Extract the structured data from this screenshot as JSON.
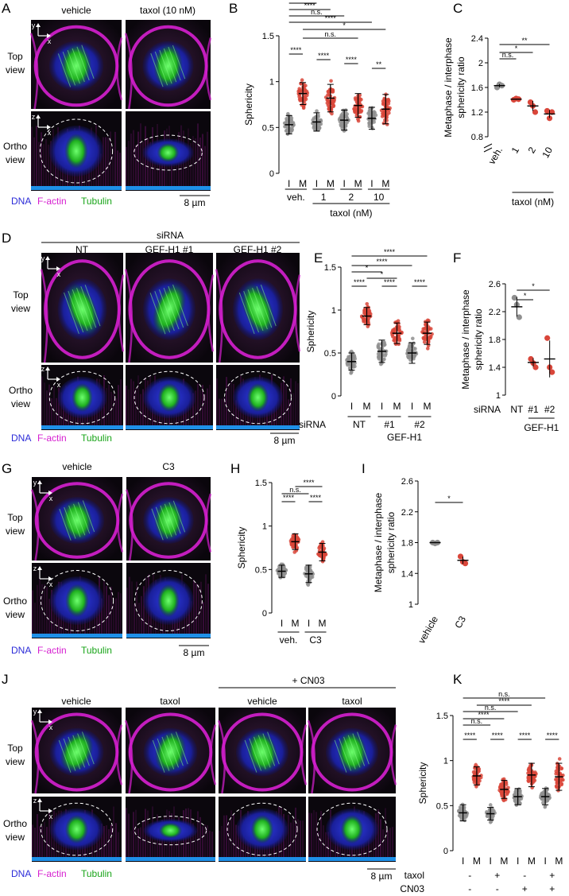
{
  "panel_letters": [
    "A",
    "B",
    "C",
    "D",
    "E",
    "F",
    "G",
    "H",
    "I",
    "J",
    "K"
  ],
  "colors": {
    "dna": "#2b2bd8",
    "actin": "#d61fd0",
    "tubulin": "#1aa51a",
    "interphase": "#8f8f8f",
    "metaphase": "#d9463a",
    "scale": "#1e90e8"
  },
  "legend": {
    "dna": "DNA",
    "actin": "F-actin",
    "tubulin": "Tubulin"
  },
  "scale_bar": "8 µm",
  "view_labels": {
    "top": "Top view",
    "ortho": "Ortho view"
  },
  "axis_labels": {
    "x": "x",
    "y": "y",
    "z": "z"
  },
  "panelA": {
    "cols": [
      "vehicle",
      "taxol (10 nM)"
    ]
  },
  "panelD": {
    "header": "siRNA",
    "cols": [
      "NT",
      "GEF-H1 #1",
      "GEF-H1 #2"
    ]
  },
  "panelG": {
    "cols": [
      "vehicle",
      "C3"
    ]
  },
  "panelJ": {
    "header": "+ CN03",
    "cols": [
      "vehicle",
      "taxol",
      "vehicle",
      "taxol"
    ]
  },
  "chart_data": [
    {
      "panel": "B",
      "type": "scatter",
      "ylabel": "Sphericity",
      "ylim": [
        0,
        1.5
      ],
      "yticks": [
        "0",
        "0.5",
        "1",
        "1.5"
      ],
      "categories": [
        "I",
        "M",
        "I",
        "M",
        "I",
        "M",
        "I",
        "M"
      ],
      "groups": [
        "veh.",
        "1",
        "2",
        "10"
      ],
      "group_title": "taxol (nM)",
      "means": [
        0.53,
        0.87,
        0.56,
        0.82,
        0.58,
        0.74,
        0.6,
        0.7
      ],
      "sds": [
        0.1,
        0.12,
        0.1,
        0.15,
        0.11,
        0.13,
        0.12,
        0.16
      ],
      "stats": [
        "****",
        "****",
        "****",
        "**",
        "*",
        "n.s.",
        "****",
        "n.s.",
        "****",
        "****"
      ]
    },
    {
      "panel": "C",
      "type": "scatter",
      "ylabel": "Metaphase / interphase sphericity ratio",
      "ylim": [
        0.8,
        2.4
      ],
      "yticks": [
        "0.8",
        "1.2",
        "1.6",
        "2",
        "2.4"
      ],
      "categories": [
        "veh.",
        "1",
        "2",
        "10"
      ],
      "group_title": "taxol (nM)",
      "points": [
        [
          1.6,
          1.65,
          1.63
        ],
        [
          1.4,
          1.42,
          1.41
        ],
        [
          1.36,
          1.3,
          1.2
        ],
        [
          1.22,
          1.1,
          1.2
        ]
      ],
      "means": [
        1.63,
        1.41,
        1.3,
        1.17
      ],
      "stats": [
        "n.s.",
        "*",
        "**"
      ]
    },
    {
      "panel": "E",
      "type": "scatter",
      "ylabel": "Sphericity",
      "ylim": [
        0,
        1.5
      ],
      "yticks": [
        "0",
        "0.5",
        "1",
        "1.5"
      ],
      "row_label": "siRNA",
      "categories": [
        "I",
        "M",
        "I",
        "M",
        "I",
        "M"
      ],
      "groups": [
        "NT",
        "#1",
        "#2"
      ],
      "group_title": "GEF-H1",
      "means": [
        0.4,
        0.93,
        0.52,
        0.73,
        0.5,
        0.73
      ],
      "sds": [
        0.1,
        0.1,
        0.13,
        0.12,
        0.12,
        0.13
      ],
      "stats": [
        "****",
        "****",
        "****",
        "*",
        "*",
        "****",
        "****"
      ]
    },
    {
      "panel": "F",
      "type": "scatter",
      "ylabel": "Metaphase / interphase sphericity ratio",
      "ylim": [
        1,
        2.6
      ],
      "yticks": [
        "1",
        "1.4",
        "1.8",
        "2.2",
        "2.6"
      ],
      "row_label": "siRNA",
      "categories": [
        "NT",
        "#1",
        "#2"
      ],
      "group_title": "GEF-H1",
      "points": [
        [
          2.4,
          2.3,
          2.12
        ],
        [
          1.52,
          1.46,
          1.4
        ],
        [
          1.82,
          1.4,
          1.33
        ]
      ],
      "means": [
        2.27,
        1.47,
        1.52
      ],
      "stats": [
        "*",
        "*"
      ]
    },
    {
      "panel": "H",
      "type": "scatter",
      "ylabel": "Sphericity",
      "ylim": [
        0,
        1.5
      ],
      "yticks": [
        "0",
        "0.5",
        "1",
        "1.5"
      ],
      "categories": [
        "I",
        "M",
        "I",
        "M"
      ],
      "groups": [
        "veh.",
        "C3"
      ],
      "means": [
        0.48,
        0.82,
        0.45,
        0.7
      ],
      "sds": [
        0.07,
        0.09,
        0.1,
        0.1
      ],
      "stats": [
        "****",
        "n.s.",
        "****",
        "****"
      ]
    },
    {
      "panel": "I",
      "type": "scatter",
      "ylabel": "Metaphase / interphase sphericity ratio",
      "ylim": [
        1,
        2.6
      ],
      "yticks": [
        "1",
        "1.4",
        "1.8",
        "2.2",
        "2.6"
      ],
      "categories": [
        "vehicle",
        "C3"
      ],
      "points": [
        [
          1.8,
          1.79,
          1.8
        ],
        [
          1.62,
          1.55,
          1.53
        ]
      ],
      "means": [
        1.8,
        1.57
      ],
      "stats": [
        "*"
      ]
    },
    {
      "panel": "K",
      "type": "scatter",
      "ylabel": "Sphericity",
      "ylim": [
        0,
        1.5
      ],
      "yticks": [
        "0",
        "0.5",
        "1",
        "1.5"
      ],
      "categories": [
        "I",
        "M",
        "I",
        "M",
        "I",
        "M",
        "I",
        "M"
      ],
      "conditions": {
        "taxol": [
          "-",
          "+",
          "-",
          "+"
        ],
        "CN03": [
          "-",
          "-",
          "+",
          "+"
        ]
      },
      "means": [
        0.42,
        0.83,
        0.41,
        0.68,
        0.6,
        0.84,
        0.6,
        0.82
      ],
      "sds": [
        0.09,
        0.1,
        0.07,
        0.1,
        0.09,
        0.13,
        0.09,
        0.15
      ],
      "stats": [
        "****",
        "****",
        "****",
        "****",
        "n.s.",
        "****",
        "n.s.",
        "****",
        "n.s."
      ]
    }
  ]
}
